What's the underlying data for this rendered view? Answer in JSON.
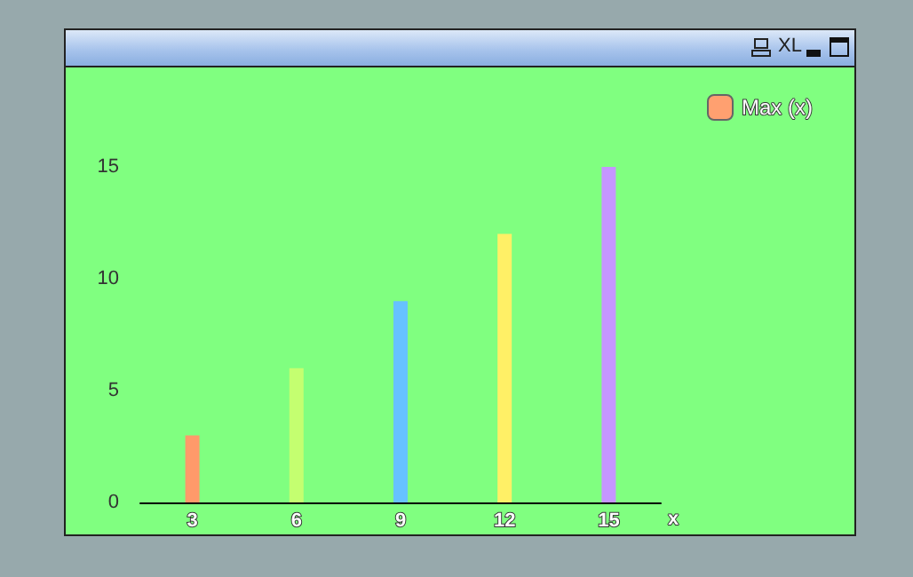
{
  "chart_data": {
    "type": "bar",
    "categories": [
      "3",
      "6",
      "9",
      "12",
      "15"
    ],
    "xlabel": "x",
    "series": [
      {
        "name": "Max (x)",
        "color": "#ffa070",
        "colors": [
          "#ff9a6a",
          "#c4ff70",
          "#66c2ff",
          "#fff066",
          "#c596ff"
        ],
        "values": [
          3,
          6,
          9,
          12,
          15
        ]
      }
    ],
    "ylim": [
      0,
      15
    ],
    "yticks": [
      0,
      5,
      10,
      15
    ],
    "grid": false,
    "legend": "top right",
    "annotations": [
      "XL"
    ]
  }
}
